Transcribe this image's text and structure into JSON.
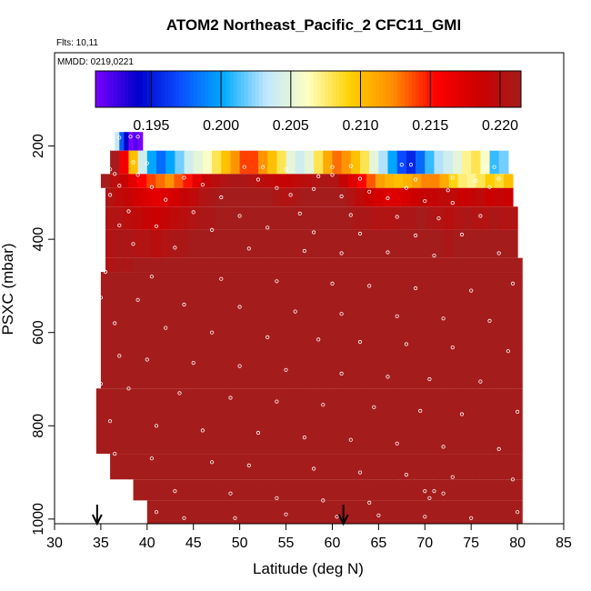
{
  "chart_data": {
    "type": "heatmap",
    "title": "ATOM2 Northeast_Pacific_2 CFC11_GMI",
    "annotations": [
      "Flts: 10,11",
      "MMDD: 0219,0221"
    ],
    "xlabel": "Latitude (deg N)",
    "ylabel": "PSXC (mbar)",
    "xlim": [
      30,
      85
    ],
    "ylim": [
      1010,
      0
    ],
    "y_inverted": true,
    "x_ticks": [
      30,
      35,
      40,
      45,
      50,
      55,
      60,
      65,
      70,
      75,
      80,
      85
    ],
    "y_ticks": [
      200,
      400,
      600,
      800,
      1000
    ],
    "grid": false,
    "colorbar": {
      "placement": "top-inside",
      "range": [
        0.191,
        0.2215
      ],
      "tick_values": [
        0.195,
        0.2,
        0.205,
        0.21,
        0.215,
        0.22
      ],
      "tick_labels": [
        "0.195",
        "0.200",
        "0.205",
        "0.210",
        "0.215",
        "0.220"
      ],
      "colors": [
        "#7a00ff",
        "#0000cc",
        "#0a4fff",
        "#00aaff",
        "#bfe6ff",
        "#ffffc0",
        "#ffd000",
        "#ff8c00",
        "#ff0000",
        "#cc0000",
        "#a51c1c"
      ]
    },
    "arrows_at_latitude": [
      34.6,
      61.2
    ],
    "layers": [
      {
        "p_top": 170,
        "p_bot": 210,
        "x_start": 36.5,
        "x_end": 39.5,
        "values": [
          0.2035,
          0.1975,
          0.194,
          0.191,
          0.192,
          0.191
        ]
      },
      {
        "p_top": 210,
        "p_bot": 260,
        "x_start": 36,
        "x_end": 79,
        "values": [
          0.2215,
          0.216,
          0.21,
          0.204,
          0.2,
          0.198,
          0.2,
          0.202,
          0.204,
          0.205,
          0.206,
          0.208,
          0.21,
          0.212,
          0.214,
          0.214,
          0.212,
          0.21,
          0.208,
          0.205,
          0.204,
          0.205,
          0.208,
          0.211,
          0.213,
          0.212,
          0.21,
          0.208,
          0.205,
          0.203,
          0.2,
          0.197,
          0.1955,
          0.198,
          0.201,
          0.203,
          0.204,
          0.205,
          0.207,
          0.208,
          0.206,
          0.201,
          0.202
        ]
      },
      {
        "p_top": 260,
        "p_bot": 290,
        "x_start": 35,
        "x_end": 79.5,
        "values": [
          0.2215,
          0.22,
          0.219,
          0.217,
          0.2155,
          0.214,
          0.213,
          0.212,
          0.2135,
          0.215,
          0.217,
          0.219,
          0.22,
          0.2205,
          0.221,
          0.221,
          0.2205,
          0.22,
          0.2195,
          0.219,
          0.219,
          0.2195,
          0.22,
          0.2205,
          0.221,
          0.2205,
          0.219,
          0.2175,
          0.2155,
          0.2135,
          0.2115,
          0.2105,
          0.21,
          0.2105,
          0.2115,
          0.2125,
          0.2125,
          0.211,
          0.209,
          0.2075,
          0.207,
          0.208,
          0.2095,
          0.2085,
          0.21
        ]
      },
      {
        "p_top": 290,
        "p_bot": 330,
        "x_start": 35.5,
        "x_end": 79.5,
        "values": [
          0.2205,
          0.2195,
          0.219,
          0.218,
          0.2175,
          0.217,
          0.2175,
          0.218,
          0.219,
          0.2195,
          0.2205,
          0.221,
          0.2215,
          0.2215,
          0.2215,
          0.2215,
          0.2215,
          0.2215,
          0.221,
          0.2205,
          0.221,
          0.2215,
          0.2215,
          0.2215,
          0.2215,
          0.2215,
          0.2205,
          0.2195,
          0.2185,
          0.218,
          0.2175,
          0.2175,
          0.218,
          0.2185,
          0.219,
          0.219,
          0.2195,
          0.2195,
          0.2185,
          0.219,
          0.2195,
          0.2185,
          0.219,
          0.2185
        ]
      },
      {
        "p_top": 330,
        "p_bot": 380,
        "x_start": 35.5,
        "x_end": 80,
        "values": [
          0.2205,
          0.2205,
          0.22,
          0.2195,
          0.219,
          0.2185,
          0.219,
          0.2195,
          0.22,
          0.2205,
          0.221,
          0.221,
          0.2215,
          0.2215,
          0.2215,
          0.2215,
          0.2215,
          0.2215,
          0.2215,
          0.2215,
          0.2215,
          0.2215,
          0.2215,
          0.2215,
          0.2215,
          0.2215,
          0.2215,
          0.221,
          0.221,
          0.2205,
          0.2205,
          0.2205,
          0.221,
          0.221,
          0.2215,
          0.221,
          0.2205,
          0.22,
          0.2205,
          0.221,
          0.2205,
          0.2205,
          0.221,
          0.2205,
          0.2205
        ]
      },
      {
        "p_top": 380,
        "p_bot": 440,
        "x_start": 35.5,
        "x_end": 80,
        "values": [
          0.2205,
          0.221,
          0.221,
          0.2205,
          0.2205,
          0.22,
          0.2205,
          0.221,
          0.221,
          0.2215,
          0.2215,
          0.2215,
          0.2215,
          0.2215,
          0.2215,
          0.2215,
          0.2215,
          0.2215,
          0.2215,
          0.2215,
          0.2215,
          0.2215,
          0.2215,
          0.2215,
          0.2215,
          0.2215,
          0.2215,
          0.2215,
          0.2215,
          0.2215,
          0.2215,
          0.2215,
          0.2215,
          0.2215,
          0.2215,
          0.2215,
          0.2215,
          0.221,
          0.2215,
          0.2215,
          0.2215,
          0.2215,
          0.2215,
          0.2215,
          0.2215
        ]
      },
      {
        "p_top": 440,
        "p_bot": 470,
        "x_start": 35.5,
        "x_end": 80.5,
        "values": [
          0.2205,
          0.221,
          0.221,
          0.2215,
          0.2215,
          0.2215,
          0.2215,
          0.2215,
          0.2215,
          0.2215,
          0.2215,
          0.2215,
          0.2215,
          0.2215,
          0.2215,
          0.2215,
          0.2215,
          0.2215,
          0.2215,
          0.2215,
          0.2215,
          0.2215,
          0.2215,
          0.2215,
          0.2215,
          0.2215,
          0.2215,
          0.2215,
          0.2215,
          0.2215,
          0.2215,
          0.2215,
          0.2215,
          0.2215,
          0.2215,
          0.2215,
          0.2215,
          0.2215,
          0.2215,
          0.2215,
          0.2215,
          0.2215,
          0.2215,
          0.2215,
          0.2215
        ]
      },
      {
        "p_top": 470,
        "p_bot": 720,
        "x_start": 35,
        "x_end": 80.5,
        "values": [
          0.2215,
          0.2215,
          0.2215,
          0.2215,
          0.2215,
          0.2215,
          0.2215,
          0.2215,
          0.2215,
          0.2215,
          0.2215,
          0.2215,
          0.2215,
          0.2215,
          0.2215,
          0.2215,
          0.2215,
          0.2215,
          0.2215,
          0.2215,
          0.2215,
          0.2215,
          0.2215,
          0.2215,
          0.2215,
          0.2215,
          0.2215,
          0.2215,
          0.2215,
          0.2215,
          0.2215,
          0.2215,
          0.2215,
          0.2215,
          0.2215,
          0.2215,
          0.2215,
          0.2215,
          0.2215,
          0.2215,
          0.2215,
          0.2215,
          0.2215,
          0.2215,
          0.2215,
          0.2215
        ]
      },
      {
        "p_top": 720,
        "p_bot": 860,
        "x_start": 34.5,
        "x_end": 80.5,
        "values": [
          0.2215,
          0.2215,
          0.2215,
          0.2215,
          0.2215,
          0.2215,
          0.2215,
          0.2215,
          0.2215,
          0.2215,
          0.2215,
          0.2215,
          0.2215,
          0.2215,
          0.2215,
          0.2215,
          0.2215,
          0.2215,
          0.2215,
          0.2215,
          0.2215,
          0.2215,
          0.2215,
          0.2215,
          0.2215,
          0.2215,
          0.2215,
          0.2215,
          0.2215,
          0.2215,
          0.2215,
          0.2215,
          0.2215,
          0.2215,
          0.2215,
          0.2215,
          0.2215,
          0.2215,
          0.2215,
          0.2215,
          0.2215,
          0.2215,
          0.2215,
          0.2215,
          0.2215,
          0.2215
        ]
      },
      {
        "p_top": 860,
        "p_bot": 915,
        "x_start": 36,
        "x_end": 80.5,
        "values": [
          0.2215,
          0.2215,
          0.2215,
          0.2215,
          0.2215,
          0.2215,
          0.2215,
          0.2215,
          0.2215,
          0.2215,
          0.2215,
          0.2215,
          0.2215,
          0.2215,
          0.2215,
          0.2215,
          0.2215,
          0.2215,
          0.2215,
          0.2215,
          0.2215,
          0.2215,
          0.2215,
          0.2215,
          0.2215,
          0.2215,
          0.2215,
          0.2215,
          0.2215,
          0.2215,
          0.2215,
          0.2215,
          0.2215,
          0.2215,
          0.2215,
          0.2215,
          0.2215,
          0.2215,
          0.2215,
          0.2215,
          0.2215,
          0.2215,
          0.2215,
          0.2215,
          0.2215
        ]
      },
      {
        "p_top": 915,
        "p_bot": 960,
        "x_start": 38.5,
        "x_end": 80.5,
        "values": [
          0.2215,
          0.2215,
          0.2215,
          0.2215,
          0.2215,
          0.2215,
          0.2215,
          0.2215,
          0.2215,
          0.2215,
          0.2215,
          0.2215,
          0.2215,
          0.2215,
          0.2215,
          0.2215,
          0.2215,
          0.2215,
          0.2215,
          0.2215,
          0.2215,
          0.2215,
          0.2215,
          0.2215,
          0.2215,
          0.2215,
          0.2215,
          0.2215,
          0.2215,
          0.2215,
          0.2215,
          0.2215,
          0.2215,
          0.2215,
          0.2215,
          0.2215,
          0.2215,
          0.2215,
          0.2215,
          0.2215,
          0.2215,
          0.2215
        ]
      },
      {
        "p_top": 960,
        "p_bot": 1010,
        "x_start": 40,
        "x_end": 80.5,
        "values": [
          0.2215,
          0.2215,
          0.2215,
          0.2215,
          0.2215,
          0.2215,
          0.2215,
          0.2215,
          0.2215,
          0.2215,
          0.2215,
          0.2215,
          0.2215,
          0.2215,
          0.2215,
          0.2215,
          0.2215,
          0.2215,
          0.2215,
          0.2215,
          0.2215,
          0.2215,
          0.2215,
          0.2215,
          0.2215,
          0.2215,
          0.2215,
          0.2215,
          0.2215,
          0.2215,
          0.2215,
          0.2215,
          0.2215,
          0.2215,
          0.2215,
          0.2215,
          0.2215,
          0.2215,
          0.2215,
          0.2215,
          0.2215
        ]
      }
    ],
    "observation_points": [
      [
        36,
        182
      ],
      [
        37,
        182
      ],
      [
        38.2,
        180
      ],
      [
        39,
        180
      ],
      [
        35.5,
        195
      ],
      [
        38.5,
        235
      ],
      [
        40,
        237
      ],
      [
        36,
        250
      ],
      [
        50.5,
        245
      ],
      [
        52.5,
        245
      ],
      [
        55,
        250
      ],
      [
        60,
        245
      ],
      [
        62,
        243
      ],
      [
        67.5,
        240
      ],
      [
        68.5,
        240
      ],
      [
        76.5,
        245
      ],
      [
        77.5,
        245
      ],
      [
        36.5,
        260
      ],
      [
        39,
        262
      ],
      [
        44,
        268
      ],
      [
        52,
        272
      ],
      [
        58.5,
        265
      ],
      [
        60,
        262
      ],
      [
        63,
        270
      ],
      [
        69,
        272
      ],
      [
        73,
        268
      ],
      [
        75.5,
        275
      ],
      [
        78,
        270
      ],
      [
        37,
        285
      ],
      [
        40.5,
        288
      ],
      [
        46,
        283
      ],
      [
        54,
        290
      ],
      [
        58,
        292
      ],
      [
        64,
        298
      ],
      [
        68,
        290
      ],
      [
        72.5,
        295
      ],
      [
        77,
        288
      ],
      [
        36,
        305
      ],
      [
        42,
        315
      ],
      [
        48,
        310
      ],
      [
        55.5,
        305
      ],
      [
        61,
        308
      ],
      [
        66,
        312
      ],
      [
        70,
        318
      ],
      [
        73,
        322
      ],
      [
        38,
        340
      ],
      [
        45,
        342
      ],
      [
        50,
        350
      ],
      [
        56.5,
        345
      ],
      [
        62,
        348
      ],
      [
        67,
        352
      ],
      [
        71.5,
        355
      ],
      [
        76,
        350
      ],
      [
        37,
        370
      ],
      [
        41,
        372
      ],
      [
        47,
        380
      ],
      [
        53,
        375
      ],
      [
        58,
        385
      ],
      [
        63,
        388
      ],
      [
        69,
        392
      ],
      [
        74,
        390
      ],
      [
        38.5,
        410
      ],
      [
        43,
        418
      ],
      [
        51,
        420
      ],
      [
        57,
        425
      ],
      [
        61,
        430
      ],
      [
        66,
        428
      ],
      [
        71,
        435
      ],
      [
        78,
        430
      ],
      [
        35.5,
        470
      ],
      [
        40.5,
        480
      ],
      [
        48,
        485
      ],
      [
        54,
        490
      ],
      [
        60,
        495
      ],
      [
        64,
        500
      ],
      [
        69,
        505
      ],
      [
        75,
        510
      ],
      [
        79.5,
        495
      ],
      [
        35,
        525
      ],
      [
        39,
        530
      ],
      [
        44,
        540
      ],
      [
        50,
        545
      ],
      [
        56,
        555
      ],
      [
        61,
        560
      ],
      [
        67,
        565
      ],
      [
        72,
        570
      ],
      [
        77,
        575
      ],
      [
        36.5,
        580
      ],
      [
        42,
        590
      ],
      [
        47,
        600
      ],
      [
        53,
        610
      ],
      [
        58.5,
        615
      ],
      [
        63,
        620
      ],
      [
        68,
        625
      ],
      [
        73,
        632
      ],
      [
        79,
        640
      ],
      [
        37,
        650
      ],
      [
        40,
        658
      ],
      [
        45,
        665
      ],
      [
        50,
        672
      ],
      [
        55,
        680
      ],
      [
        61,
        688
      ],
      [
        66,
        695
      ],
      [
        70.5,
        700
      ],
      [
        76,
        705
      ],
      [
        35,
        710
      ],
      [
        38,
        720
      ],
      [
        43.5,
        730
      ],
      [
        49,
        740
      ],
      [
        54,
        748
      ],
      [
        59,
        755
      ],
      [
        64.5,
        760
      ],
      [
        69.5,
        768
      ],
      [
        74,
        775
      ],
      [
        80,
        770
      ],
      [
        36,
        790
      ],
      [
        41,
        800
      ],
      [
        46,
        810
      ],
      [
        52,
        815
      ],
      [
        57,
        825
      ],
      [
        62,
        830
      ],
      [
        67,
        838
      ],
      [
        72,
        845
      ],
      [
        78,
        850
      ],
      [
        36.5,
        860
      ],
      [
        40.5,
        870
      ],
      [
        47,
        878
      ],
      [
        51,
        885
      ],
      [
        58,
        892
      ],
      [
        63,
        900
      ],
      [
        68,
        905
      ],
      [
        73,
        910
      ],
      [
        79.5,
        915
      ],
      [
        37.5,
        930
      ],
      [
        43,
        940
      ],
      [
        49,
        945
      ],
      [
        54,
        955
      ],
      [
        59,
        960
      ],
      [
        64,
        965
      ],
      [
        70,
        940
      ],
      [
        70.5,
        955
      ],
      [
        71,
        940
      ],
      [
        72,
        945
      ],
      [
        41,
        985
      ],
      [
        44,
        998
      ],
      [
        49.5,
        998
      ],
      [
        55,
        990
      ],
      [
        60.5,
        995
      ],
      [
        65,
        992
      ],
      [
        70,
        995
      ],
      [
        75,
        998
      ],
      [
        80,
        985
      ]
    ]
  }
}
